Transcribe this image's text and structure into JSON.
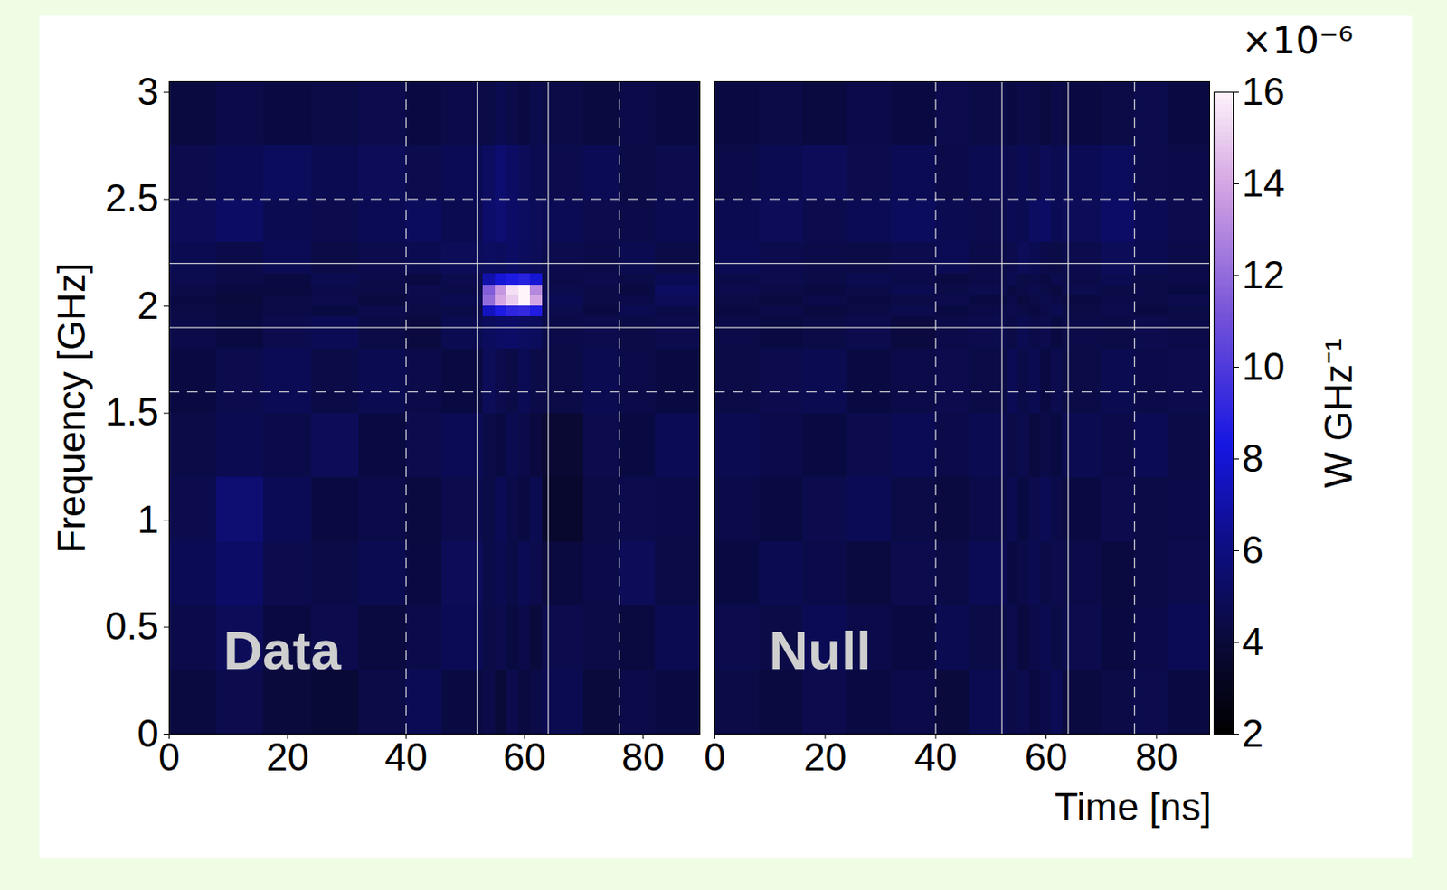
{
  "chart_data": {
    "type": "heatmap",
    "x_label": "Time [ns]",
    "y_label": "Frequency [GHz]",
    "xlim": [
      0,
      89.6
    ],
    "xticks": [
      0,
      20,
      40,
      60,
      80
    ],
    "ylim": [
      0,
      3.05
    ],
    "yticks": [
      0,
      0.5,
      1,
      1.5,
      2,
      2.5,
      3
    ],
    "x_edges": [
      0,
      8,
      16,
      24,
      32,
      40,
      46,
      53,
      55,
      57,
      59,
      61,
      63,
      70,
      76,
      82,
      89.6
    ],
    "y_edges": [
      0,
      0.3,
      0.6,
      0.9,
      1.2,
      1.5,
      1.8,
      1.95,
      2.0,
      2.05,
      2.1,
      2.15,
      2.3,
      2.5,
      2.75,
      3.05
    ],
    "panels": [
      {
        "label": "Data",
        "values": [
          [
            4.2,
            4.6,
            4.1,
            3.9,
            4.4,
            4.8,
            4.3,
            4.5,
            4.0,
            4.6,
            4.2,
            4.4,
            4.7,
            4.1,
            4.5,
            4.3
          ],
          [
            4.5,
            4.9,
            4.3,
            4.6,
            4.2,
            4.5,
            4.8,
            4.4,
            4.6,
            4.3,
            4.5,
            4.1,
            4.6,
            4.4,
            4.2,
            4.7
          ],
          [
            4.8,
            5.3,
            4.6,
            4.4,
            4.7,
            4.3,
            4.9,
            4.5,
            4.7,
            4.4,
            4.8,
            4.6,
            4.2,
            4.5,
            4.9,
            4.4
          ],
          [
            4.6,
            5.6,
            4.8,
            4.3,
            4.5,
            4.2,
            4.6,
            4.4,
            4.8,
            4.5,
            4.3,
            4.7,
            3.6,
            4.4,
            4.6,
            4.5
          ],
          [
            4.4,
            4.7,
            4.5,
            4.9,
            4.3,
            4.6,
            4.8,
            4.5,
            4.3,
            4.7,
            4.5,
            4.2,
            3.8,
            4.6,
            4.3,
            4.8
          ],
          [
            4.3,
            4.6,
            4.8,
            4.4,
            4.7,
            4.5,
            4.3,
            4.9,
            4.6,
            4.4,
            4.8,
            4.5,
            4.4,
            4.7,
            4.5,
            4.3
          ],
          [
            4.5,
            4.3,
            4.6,
            4.8,
            4.4,
            4.2,
            4.7,
            5.0,
            5.2,
            5.3,
            5.1,
            5.0,
            4.5,
            4.6,
            4.4,
            4.6
          ],
          [
            4.4,
            4.2,
            4.5,
            4.3,
            4.6,
            4.4,
            4.5,
            7.5,
            8.5,
            9.0,
            9.2,
            8.6,
            4.6,
            4.3,
            4.7,
            4.5
          ],
          [
            4.3,
            4.1,
            4.4,
            4.6,
            4.2,
            4.5,
            4.7,
            12.0,
            14.0,
            15.0,
            16.0,
            14.0,
            4.8,
            4.4,
            4.5,
            4.9
          ],
          [
            4.5,
            4.3,
            4.2,
            4.5,
            4.4,
            4.6,
            4.5,
            11.5,
            13.5,
            15.5,
            16.0,
            13.0,
            4.6,
            4.5,
            4.3,
            5.1
          ],
          [
            4.6,
            4.4,
            4.3,
            4.7,
            4.5,
            4.3,
            4.6,
            7.0,
            8.0,
            8.5,
            8.8,
            8.0,
            4.5,
            4.6,
            4.4,
            4.8
          ],
          [
            4.7,
            4.5,
            4.8,
            4.4,
            4.6,
            4.7,
            4.9,
            5.1,
            5.0,
            5.2,
            5.0,
            4.9,
            4.6,
            4.5,
            4.7,
            4.4
          ],
          [
            4.9,
            5.2,
            4.7,
            4.6,
            4.8,
            5.0,
            4.7,
            5.4,
            5.6,
            5.3,
            5.1,
            4.9,
            4.8,
            4.6,
            4.5,
            4.7
          ],
          [
            4.6,
            4.8,
            5.0,
            4.7,
            4.9,
            4.6,
            4.8,
            5.1,
            5.5,
            5.2,
            4.9,
            4.7,
            4.6,
            4.8,
            4.4,
            4.6
          ],
          [
            4.2,
            4.5,
            4.3,
            4.4,
            4.6,
            4.3,
            4.5,
            4.4,
            4.7,
            4.5,
            4.3,
            4.6,
            4.4,
            4.2,
            4.5,
            4.3
          ]
        ]
      },
      {
        "label": "Null",
        "values": [
          [
            4.4,
            4.2,
            4.6,
            4.3,
            4.5,
            4.1,
            4.7,
            4.4,
            4.6,
            4.3,
            4.5,
            4.8,
            4.2,
            4.4,
            4.6,
            4.3
          ],
          [
            4.6,
            4.4,
            4.8,
            4.5,
            4.3,
            4.7,
            4.4,
            4.6,
            4.2,
            4.5,
            4.7,
            4.4,
            4.6,
            4.3,
            4.5,
            4.8
          ],
          [
            4.3,
            4.7,
            4.5,
            4.2,
            4.6,
            4.4,
            4.8,
            4.3,
            4.5,
            4.7,
            4.4,
            4.6,
            4.5,
            4.2,
            4.4,
            4.6
          ],
          [
            4.5,
            4.3,
            4.6,
            4.8,
            4.4,
            4.2,
            4.5,
            4.7,
            4.3,
            4.6,
            4.8,
            4.5,
            4.3,
            4.6,
            4.4,
            4.5
          ],
          [
            4.7,
            4.5,
            4.3,
            4.6,
            4.8,
            4.5,
            4.7,
            4.4,
            4.6,
            4.2,
            4.5,
            4.3,
            4.7,
            4.5,
            4.8,
            4.4
          ],
          [
            4.4,
            4.6,
            4.7,
            4.3,
            4.5,
            4.6,
            4.4,
            4.8,
            4.5,
            4.7,
            4.3,
            4.6,
            4.4,
            4.7,
            4.5,
            4.6
          ],
          [
            4.5,
            4.3,
            4.4,
            4.6,
            4.2,
            4.5,
            4.6,
            4.4,
            4.7,
            4.5,
            4.6,
            4.3,
            4.5,
            4.4,
            4.6,
            4.5
          ],
          [
            4.3,
            4.5,
            4.2,
            4.4,
            4.6,
            4.3,
            4.5,
            4.6,
            4.4,
            4.3,
            4.5,
            4.7,
            4.4,
            4.6,
            4.3,
            4.4
          ],
          [
            4.4,
            4.2,
            4.5,
            4.3,
            4.4,
            4.6,
            4.3,
            4.5,
            4.2,
            4.4,
            4.6,
            4.5,
            4.3,
            4.5,
            4.4,
            4.6
          ],
          [
            4.6,
            4.4,
            4.3,
            4.5,
            4.7,
            4.4,
            4.6,
            4.3,
            4.5,
            4.6,
            4.4,
            4.2,
            4.6,
            4.4,
            4.5,
            4.3
          ],
          [
            4.5,
            4.6,
            4.4,
            4.7,
            4.5,
            4.3,
            4.5,
            4.7,
            4.4,
            4.5,
            4.3,
            4.6,
            4.5,
            4.7,
            4.4,
            4.5
          ],
          [
            4.8,
            4.6,
            4.5,
            4.4,
            4.6,
            4.8,
            4.5,
            4.6,
            4.9,
            4.7,
            4.5,
            4.4,
            4.6,
            4.9,
            4.7,
            4.5
          ],
          [
            4.7,
            4.9,
            4.6,
            4.8,
            5.0,
            4.7,
            4.6,
            4.8,
            4.7,
            5.1,
            5.2,
            4.8,
            4.9,
            5.3,
            4.8,
            4.6
          ],
          [
            4.5,
            4.7,
            4.9,
            4.6,
            4.8,
            4.5,
            4.7,
            4.6,
            4.8,
            4.6,
            4.9,
            4.7,
            4.8,
            5.0,
            4.6,
            4.5
          ],
          [
            4.3,
            4.4,
            4.2,
            4.5,
            4.3,
            4.6,
            4.4,
            4.3,
            4.5,
            4.4,
            4.2,
            4.5,
            4.3,
            4.4,
            4.6,
            4.3
          ]
        ]
      }
    ],
    "boxes": [
      {
        "x": [
          52,
          64
        ],
        "y": [
          1.9,
          2.2
        ],
        "line_style": "solid"
      },
      {
        "x": [
          40,
          76
        ],
        "y": [
          1.6,
          2.5
        ],
        "line_style": "dashed"
      }
    ],
    "colorbar": {
      "lim": [
        2,
        16
      ],
      "ticks": [
        2,
        4,
        6,
        8,
        10,
        12,
        14,
        16
      ],
      "label": "W GHz⁻¹",
      "exponent_label": "×10⁻⁶"
    }
  }
}
